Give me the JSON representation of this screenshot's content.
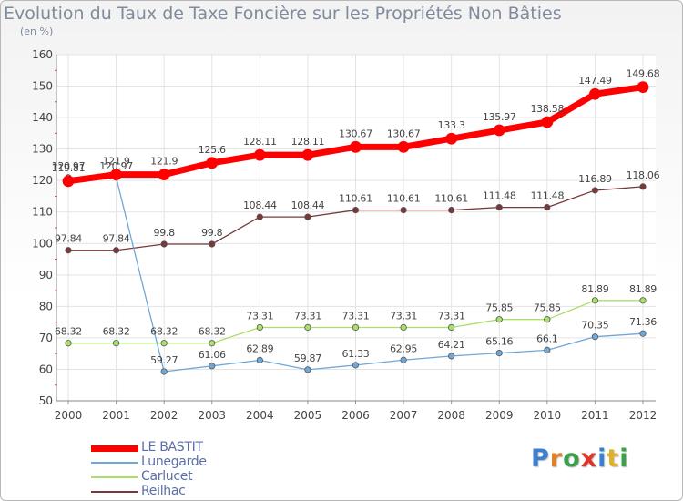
{
  "chart_data": {
    "type": "line",
    "title": "Evolution du Taux de Taxe Foncière sur les Propriétés Non Bâties",
    "ylabel": "(en %)",
    "xlabel": "",
    "ylim": [
      50,
      160
    ],
    "yticks": [
      50,
      60,
      70,
      80,
      90,
      100,
      110,
      120,
      130,
      140,
      150,
      160
    ],
    "categories": [
      "2000",
      "2001",
      "2002",
      "2003",
      "2004",
      "2005",
      "2006",
      "2007",
      "2008",
      "2009",
      "2010",
      "2011",
      "2012"
    ],
    "series": [
      {
        "name": "LE BASTIT",
        "color": "#ff0000",
        "values": [
          119.81,
          121.9,
          121.9,
          125.6,
          128.11,
          128.11,
          130.67,
          130.67,
          133.3,
          135.97,
          138.58,
          147.49,
          149.68
        ],
        "labels": [
          "119.81",
          "121.9",
          "121.9",
          "125.6",
          "128.11",
          "128.11",
          "130.67",
          "130.67",
          "133.3",
          "135.97",
          "138.58",
          "147.49",
          "149.68"
        ]
      },
      {
        "name": "Lunegarde",
        "color": "#6fa8d8",
        "values": [
          120.97,
          120.97,
          59.27,
          61.06,
          62.89,
          59.87,
          61.33,
          62.95,
          64.21,
          65.16,
          66.1,
          70.35,
          71.36
        ],
        "labels": [
          "120.97",
          "120.97",
          "59.27",
          "61.06",
          "62.89",
          "59.87",
          "61.33",
          "62.95",
          "64.21",
          "65.16",
          "66.1",
          "70.35",
          "71.36"
        ]
      },
      {
        "name": "Carlucet",
        "color": "#a8e06a",
        "values": [
          68.32,
          68.32,
          68.32,
          68.32,
          73.31,
          73.31,
          73.31,
          73.31,
          73.31,
          75.85,
          75.85,
          81.89,
          81.89
        ],
        "labels": [
          "68.32",
          "68.32",
          "68.32",
          "68.32",
          "73.31",
          "73.31",
          "73.31",
          "73.31",
          "73.31",
          "75.85",
          "75.85",
          "81.89",
          "81.89"
        ]
      },
      {
        "name": "Reilhac",
        "color": "#7a3838",
        "values": [
          97.84,
          97.84,
          99.8,
          99.8,
          108.44,
          108.44,
          110.61,
          110.61,
          110.61,
          111.48,
          111.48,
          116.89,
          118.06
        ],
        "labels": [
          "97.84",
          "97.84",
          "99.8",
          "99.8",
          "108.44",
          "108.44",
          "110.61",
          "110.61",
          "110.61",
          "111.48",
          "111.48",
          "116.89",
          "118.06"
        ]
      }
    ],
    "legend_position": "bottom-left",
    "grid": true
  },
  "logo": {
    "letters": [
      "P",
      "r",
      "o",
      "x",
      "i",
      "t",
      "i"
    ],
    "colors": [
      "#3a7fd0",
      "#e0802a",
      "#3aa04a",
      "#e0342a",
      "#3a7fd0",
      "#e0b02a",
      "#3aa04a"
    ]
  }
}
